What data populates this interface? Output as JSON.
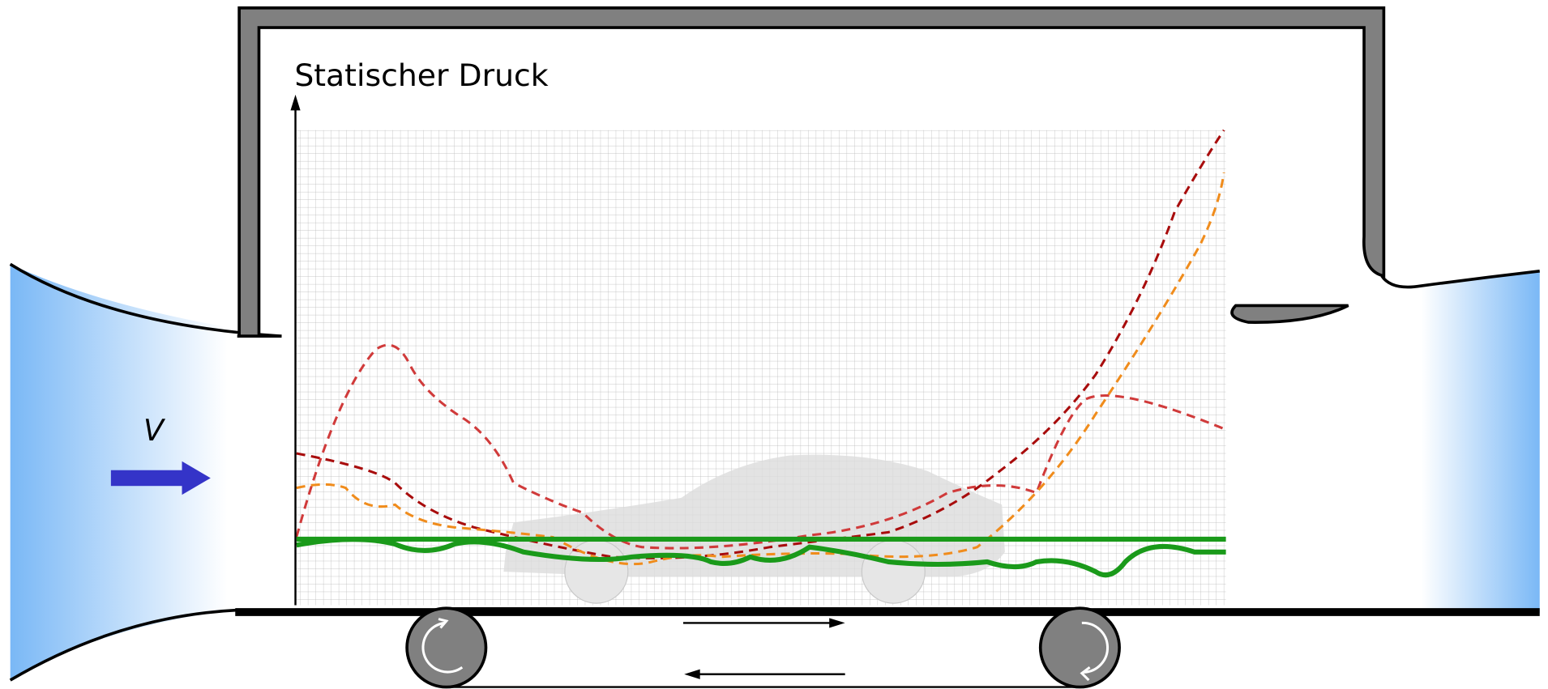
{
  "axis_label": "Statischer Druck",
  "velocity_label": "V"
}
